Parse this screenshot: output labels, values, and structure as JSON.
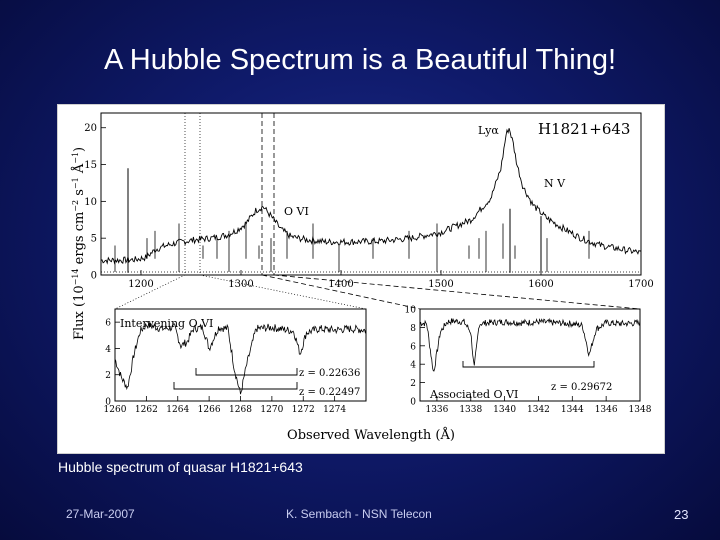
{
  "slide": {
    "title": "A Hubble Spectrum is a Beautiful Thing!",
    "caption": "Hubble spectrum of quasar H1821+643",
    "footer_date": "27-Mar-2007",
    "footer_center": "K. Sembach - NSN Telecon",
    "page_number": "23"
  },
  "colors": {
    "background": "#0f1a6a",
    "text": "#ffffff",
    "spectrum": "#000000"
  },
  "chart_data": [
    {
      "type": "line",
      "title": "H1821+643",
      "ylabel": "Flux (10^-14 ergs cm^-2 s^-1 Å^-1)",
      "xlim": [
        1160,
        1700
      ],
      "ylim": [
        0,
        22
      ],
      "x_ticks": [
        "1200",
        "1300",
        "1400",
        "1500",
        "1600",
        "1700"
      ],
      "y_ticks": [
        "0",
        "5",
        "10",
        "15",
        "20"
      ],
      "annotations": [
        "Lyα",
        "N V",
        "O VI"
      ],
      "series": [
        {
          "x": [
            1160,
            1180,
            1195,
            1205,
            1215,
            1225,
            1240,
            1255,
            1270,
            1285,
            1295,
            1305,
            1315,
            1322,
            1330,
            1340,
            1350,
            1365,
            1385,
            1410,
            1440,
            1470,
            1500,
            1530,
            1550,
            1560,
            1565,
            1568,
            1572,
            1576,
            1582,
            1592,
            1605,
            1620,
            1640,
            1660,
            1680,
            1700
          ],
          "y": [
            2.0,
            2.0,
            2.1,
            2.4,
            3.5,
            4.0,
            4.5,
            4.8,
            5.0,
            5.4,
            6.0,
            7.0,
            8.8,
            9.3,
            8.0,
            6.2,
            5.2,
            4.8,
            4.5,
            4.5,
            4.6,
            5.0,
            5.8,
            7.5,
            10.5,
            14.5,
            19.0,
            20.0,
            18.0,
            15.0,
            12.0,
            9.5,
            7.8,
            6.5,
            5.0,
            4.0,
            3.5,
            3.0
          ]
        }
      ]
    },
    {
      "type": "line",
      "annotations": [
        "Intervening O VI",
        "z = 0.22636",
        "z = 0.22497"
      ],
      "xlim": [
        1260,
        1276
      ],
      "ylim": [
        0,
        7
      ],
      "x_ticks": [
        "1260",
        "1262",
        "1264",
        "1266",
        "1268",
        "1270",
        "1272",
        "1274"
      ],
      "y_ticks": [
        "0",
        "2",
        "4",
        "6"
      ],
      "series": [
        {
          "x": [
            1260,
            1260.4,
            1260.8,
            1261.2,
            1261.6,
            1262,
            1263,
            1263.8,
            1264.2,
            1264.6,
            1265,
            1265.6,
            1266,
            1266.6,
            1267.2,
            1267.6,
            1268,
            1268.4,
            1269,
            1270,
            1271,
            1271.4,
            1271.8,
            1272.2,
            1273,
            1274,
            1275,
            1276
          ],
          "y": [
            3.2,
            1.8,
            1.0,
            3.5,
            5.3,
            5.8,
            5.5,
            5.6,
            4.2,
            4.5,
            5.5,
            5.6,
            4.0,
            5.6,
            5.5,
            2.5,
            0.5,
            2.8,
            5.5,
            5.6,
            5.4,
            5.3,
            3.6,
            5.2,
            5.5,
            5.4,
            5.5,
            5.4
          ]
        }
      ]
    },
    {
      "type": "line",
      "annotations": [
        "Associated O VI",
        "z = 0.29672"
      ],
      "xlim": [
        1335,
        1348
      ],
      "ylim": [
        0,
        10
      ],
      "x_ticks": [
        "1336",
        "1338",
        "1340",
        "1342",
        "1344",
        "1346",
        "1348"
      ],
      "y_ticks": [
        "0",
        "2",
        "4",
        "6",
        "8",
        "10"
      ],
      "series": [
        {
          "x": [
            1335,
            1335.4,
            1335.8,
            1336.2,
            1336.6,
            1337,
            1337.6,
            1338,
            1338.2,
            1338.5,
            1339,
            1340,
            1341,
            1342,
            1343,
            1344,
            1344.6,
            1345,
            1345.4,
            1346,
            1347,
            1348
          ],
          "y": [
            8.5,
            8.4,
            3.0,
            7.5,
            8.6,
            8.7,
            8.6,
            7.5,
            3.5,
            8.4,
            8.5,
            8.6,
            8.5,
            8.6,
            8.5,
            8.4,
            8.2,
            5.0,
            7.8,
            8.5,
            8.4,
            8.5
          ]
        }
      ]
    }
  ],
  "figure_text": {
    "xlabel": "Observed Wavelength (Å)",
    "ylabel_prefix": "Flux (10",
    "ylabel_exp1": "−14",
    "ylabel_mid": " ergs cm",
    "ylabel_exp2": "−2",
    "ylabel_mid2": " s",
    "ylabel_exp3": "−1",
    "ylabel_mid3": " Å",
    "ylabel_exp4": "−1",
    "ylabel_suffix": ")"
  }
}
